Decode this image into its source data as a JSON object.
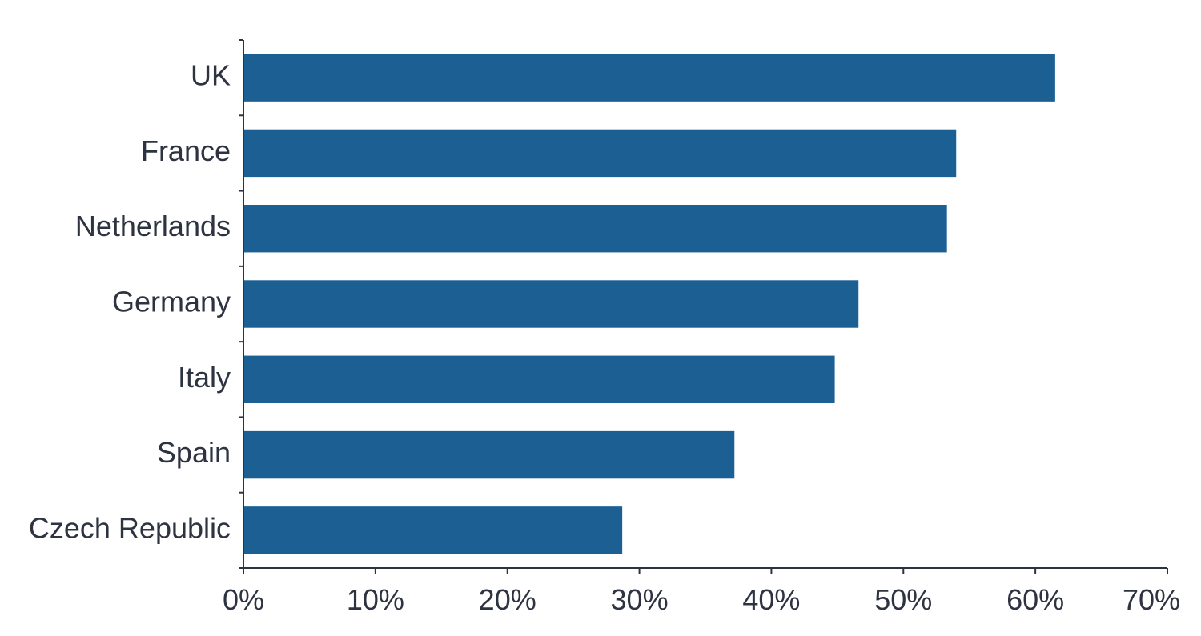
{
  "chart_data": {
    "type": "bar",
    "orientation": "horizontal",
    "title": "",
    "xlabel": "",
    "ylabel": "",
    "categories": [
      "UK",
      "France",
      "Netherlands",
      "Germany",
      "Italy",
      "Spain",
      "Czech Republic"
    ],
    "values": [
      61.5,
      54.0,
      53.3,
      46.6,
      44.8,
      37.2,
      28.7
    ],
    "xlim": [
      0,
      70
    ],
    "x_ticks": [
      0,
      10,
      20,
      30,
      40,
      50,
      60,
      70
    ],
    "x_tick_labels": [
      "0%",
      "10%",
      "20%",
      "30%",
      "40%",
      "50%",
      "60%",
      "70%"
    ],
    "grid": false,
    "legend": "none",
    "bar_color": "#1b5f93",
    "text_color": "#2d3340"
  }
}
